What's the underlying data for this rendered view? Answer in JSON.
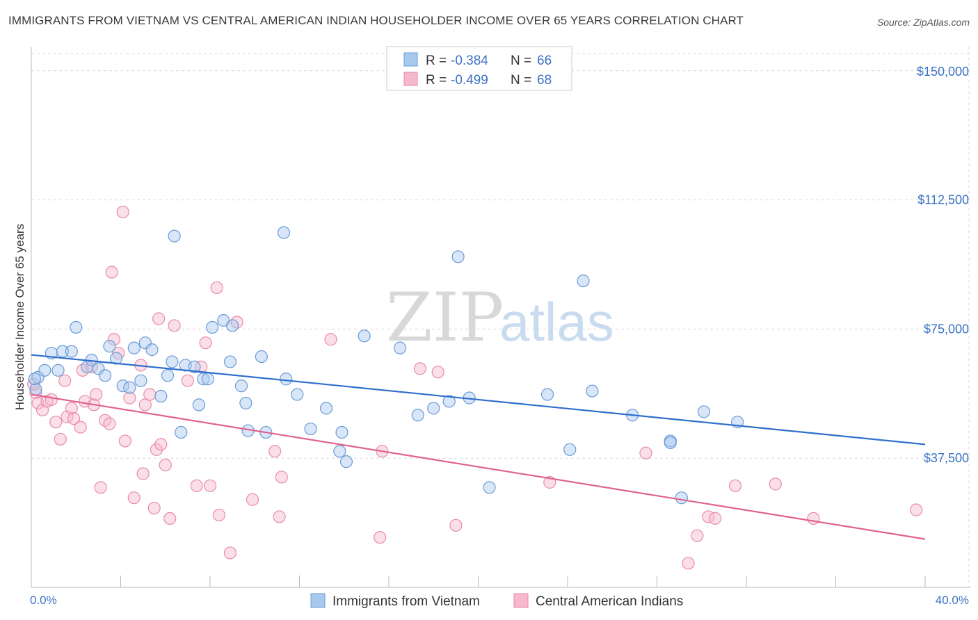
{
  "title": "IMMIGRANTS FROM VIETNAM VS CENTRAL AMERICAN INDIAN HOUSEHOLDER INCOME OVER 65 YEARS CORRELATION CHART",
  "source": "Source: ZipAtlas.com",
  "watermark": {
    "zip": "ZIP",
    "atlas": "atlas"
  },
  "legend_box": {
    "rows": [
      {
        "r_label": "R = ",
        "r_value": "-0.384",
        "n_label": "N = ",
        "n_value": "66"
      },
      {
        "r_label": "R = ",
        "r_value": "-0.499",
        "n_label": "N = ",
        "n_value": "68"
      }
    ]
  },
  "colors": {
    "blue_fill": "#a8c8ee",
    "blue_stroke": "#6a9bd8",
    "blue_line": "#2f6fcc",
    "pink_fill": "#f6b8cb",
    "pink_stroke": "#e88aa8",
    "pink_line": "#e0628e",
    "grid": "#d8d8d8",
    "tick_text": "#3b73c4"
  },
  "chart_data": {
    "type": "scatter",
    "title": "IMMIGRANTS FROM VIETNAM VS CENTRAL AMERICAN INDIAN HOUSEHOLDER INCOME OVER 65 YEARS CORRELATION CHART",
    "xlabel": "",
    "ylabel": "Householder Income Over 65 years",
    "xlim": [
      0,
      40
    ],
    "ylim": [
      0,
      155000
    ],
    "x_tick_labels": [
      "0.0%",
      "40.0%"
    ],
    "y_ticks": [
      37500,
      75000,
      112500,
      150000
    ],
    "y_tick_labels": [
      "$37,500",
      "$75,000",
      "$112,500",
      "$150,000"
    ],
    "grid": true,
    "legend_position": "top-center",
    "series": [
      {
        "name": "Immigrants from Vietnam",
        "color": "#a8c8ee",
        "trend": {
          "x": [
            0,
            40
          ],
          "y": [
            67500,
            41500
          ]
        },
        "points": [
          [
            0.2,
            57500
          ],
          [
            0.3,
            61000
          ],
          [
            0.6,
            63000
          ],
          [
            0.9,
            68000
          ],
          [
            1.2,
            63000
          ],
          [
            1.4,
            68500
          ],
          [
            1.8,
            68500
          ],
          [
            2.0,
            75500
          ],
          [
            2.5,
            64000
          ],
          [
            2.7,
            66000
          ],
          [
            3.0,
            63500
          ],
          [
            3.3,
            61500
          ],
          [
            3.5,
            70000
          ],
          [
            3.8,
            66500
          ],
          [
            4.1,
            58500
          ],
          [
            4.4,
            58000
          ],
          [
            4.6,
            69500
          ],
          [
            4.9,
            60000
          ],
          [
            5.1,
            71000
          ],
          [
            5.4,
            69000
          ],
          [
            5.8,
            55500
          ],
          [
            6.1,
            61500
          ],
          [
            6.3,
            65500
          ],
          [
            6.4,
            102000
          ],
          [
            6.7,
            45000
          ],
          [
            6.9,
            64500
          ],
          [
            7.3,
            64000
          ],
          [
            7.5,
            53000
          ],
          [
            7.7,
            60500
          ],
          [
            7.9,
            60500
          ],
          [
            8.1,
            75500
          ],
          [
            8.6,
            77500
          ],
          [
            8.9,
            65500
          ],
          [
            9.0,
            76000
          ],
          [
            9.4,
            58500
          ],
          [
            9.6,
            53500
          ],
          [
            9.7,
            45500
          ],
          [
            10.3,
            67000
          ],
          [
            10.5,
            45000
          ],
          [
            11.3,
            103000
          ],
          [
            11.4,
            60500
          ],
          [
            11.9,
            56000
          ],
          [
            12.5,
            46000
          ],
          [
            13.2,
            52000
          ],
          [
            13.8,
            39500
          ],
          [
            13.9,
            45000
          ],
          [
            14.1,
            36500
          ],
          [
            14.9,
            73000
          ],
          [
            16.5,
            69500
          ],
          [
            17.3,
            50000
          ],
          [
            18.0,
            52000
          ],
          [
            18.7,
            54000
          ],
          [
            19.1,
            96000
          ],
          [
            19.6,
            55000
          ],
          [
            20.5,
            29000
          ],
          [
            23.1,
            56000
          ],
          [
            24.1,
            40000
          ],
          [
            24.7,
            89000
          ],
          [
            25.1,
            57000
          ],
          [
            26.9,
            50000
          ],
          [
            28.6,
            42500
          ],
          [
            28.6,
            42000
          ],
          [
            29.1,
            26000
          ],
          [
            30.1,
            51000
          ],
          [
            31.6,
            48000
          ],
          [
            0.15,
            60500
          ]
        ]
      },
      {
        "name": "Central American Indians",
        "color": "#f6b8cb",
        "trend": {
          "x": [
            0,
            40
          ],
          "y": [
            56000,
            14000
          ]
        },
        "points": [
          [
            0.2,
            56500
          ],
          [
            0.3,
            53500
          ],
          [
            0.5,
            51500
          ],
          [
            0.7,
            54000
          ],
          [
            0.9,
            54500
          ],
          [
            1.1,
            48000
          ],
          [
            1.3,
            43000
          ],
          [
            1.5,
            60000
          ],
          [
            1.6,
            49500
          ],
          [
            1.8,
            52000
          ],
          [
            1.9,
            49000
          ],
          [
            2.2,
            46500
          ],
          [
            2.3,
            63000
          ],
          [
            2.4,
            54000
          ],
          [
            2.7,
            64000
          ],
          [
            2.8,
            53000
          ],
          [
            2.9,
            56000
          ],
          [
            3.1,
            29000
          ],
          [
            3.3,
            48500
          ],
          [
            3.5,
            47500
          ],
          [
            3.6,
            91500
          ],
          [
            3.7,
            72000
          ],
          [
            3.9,
            68000
          ],
          [
            4.1,
            109000
          ],
          [
            4.2,
            42500
          ],
          [
            4.4,
            55000
          ],
          [
            4.6,
            26000
          ],
          [
            4.9,
            64500
          ],
          [
            5.0,
            33000
          ],
          [
            5.1,
            53000
          ],
          [
            5.3,
            56000
          ],
          [
            5.5,
            23000
          ],
          [
            5.6,
            40000
          ],
          [
            5.7,
            78000
          ],
          [
            5.8,
            41500
          ],
          [
            6.0,
            35500
          ],
          [
            6.2,
            20000
          ],
          [
            6.4,
            76000
          ],
          [
            7.0,
            60000
          ],
          [
            7.4,
            29500
          ],
          [
            7.6,
            64000
          ],
          [
            7.8,
            71000
          ],
          [
            8.0,
            29500
          ],
          [
            8.3,
            87000
          ],
          [
            8.4,
            21000
          ],
          [
            8.9,
            10000
          ],
          [
            9.2,
            77000
          ],
          [
            9.9,
            25500
          ],
          [
            10.9,
            39500
          ],
          [
            11.1,
            20500
          ],
          [
            11.2,
            32000
          ],
          [
            13.4,
            72000
          ],
          [
            15.6,
            14500
          ],
          [
            15.7,
            39500
          ],
          [
            17.4,
            63500
          ],
          [
            18.2,
            62500
          ],
          [
            19.0,
            18000
          ],
          [
            23.2,
            30500
          ],
          [
            27.5,
            39000
          ],
          [
            29.4,
            7000
          ],
          [
            29.8,
            15000
          ],
          [
            30.3,
            20500
          ],
          [
            30.6,
            20000
          ],
          [
            31.5,
            29500
          ],
          [
            33.3,
            30000
          ],
          [
            35.0,
            20000
          ],
          [
            39.6,
            22500
          ],
          [
            0.1,
            59000
          ]
        ]
      }
    ]
  }
}
